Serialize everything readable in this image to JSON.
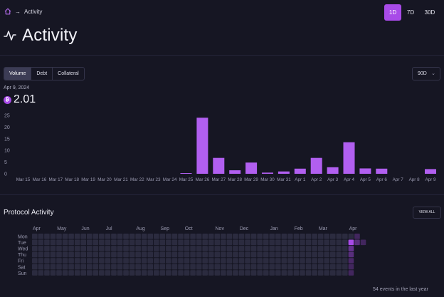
{
  "breadcrumb": {
    "home_icon": "home-icon",
    "separator": "→",
    "current": "Activity"
  },
  "timeframes": [
    {
      "label": "1D",
      "active": true
    },
    {
      "label": "7D",
      "active": false
    },
    {
      "label": "30D",
      "active": false
    }
  ],
  "page": {
    "title": "Activity",
    "title_icon": "activity-pulse-icon"
  },
  "tabs": [
    {
      "label": "Volume",
      "active": true
    },
    {
      "label": "Debt",
      "active": false
    },
    {
      "label": "Collateral",
      "active": false
    }
  ],
  "range_select": {
    "value": "90D"
  },
  "summary": {
    "date": "Apr 9, 2024",
    "value": "2.01",
    "coin_icon": "bitcoin-icon",
    "coin_symbol": "₿"
  },
  "colors": {
    "accent": "#a84be8",
    "bar": "#b15ff0",
    "background": "#161623",
    "heat_empty": "#2b2b3f"
  },
  "chart_data": {
    "type": "bar",
    "categories": [
      "Mar 15",
      "Mar 16",
      "Mar 17",
      "Mar 18",
      "Mar 19",
      "Mar 20",
      "Mar 21",
      "Mar 22",
      "Mar 23",
      "Mar 24",
      "Mar 25",
      "Mar 26",
      "Mar 27",
      "Mar 28",
      "Mar 29",
      "Mar 30",
      "Mar 31",
      "Apr 1",
      "Apr 2",
      "Apr 3",
      "Apr 4",
      "Apr 5",
      "Apr 6",
      "Apr 7",
      "Apr 8",
      "Apr 9"
    ],
    "values": [
      0,
      0,
      0,
      0,
      0,
      0,
      0,
      0,
      0,
      0,
      0.3,
      24,
      6.8,
      1.5,
      4.8,
      0.5,
      1.0,
      2.2,
      6.8,
      2.8,
      13.5,
      2.3,
      2.2,
      0,
      0,
      2.01
    ],
    "yticks": [
      0,
      5,
      10,
      15,
      20,
      25
    ],
    "ylim": [
      0,
      25
    ],
    "grid": false
  },
  "protocol": {
    "title": "Protocol Activity",
    "view_all": "VIEW ALL",
    "months": [
      "Apr",
      "May",
      "Jun",
      "Jul",
      "Aug",
      "Sep",
      "Oct",
      "Nov",
      "Dec",
      "Jan",
      "Feb",
      "Mar",
      "Apr"
    ],
    "days": [
      "Mon",
      "Tue",
      "Wed",
      "Thu",
      "Fri",
      "Sat",
      "Sun"
    ],
    "events_note": "54 events in the last year",
    "highlights": [
      {
        "week": 52,
        "day": 1,
        "level": 1.0
      },
      {
        "week": 52,
        "day": 2,
        "level": 0.55
      },
      {
        "week": 52,
        "day": 3,
        "level": 0.45
      },
      {
        "week": 52,
        "day": 4,
        "level": 0.35
      },
      {
        "week": 52,
        "day": 5,
        "level": 0.3
      },
      {
        "week": 52,
        "day": 6,
        "level": 0.3
      },
      {
        "week": 53,
        "day": 0,
        "level": 0.3
      },
      {
        "week": 53,
        "day": 1,
        "level": 0.45
      },
      {
        "week": 54,
        "day": 1,
        "level": 0.3
      }
    ]
  }
}
